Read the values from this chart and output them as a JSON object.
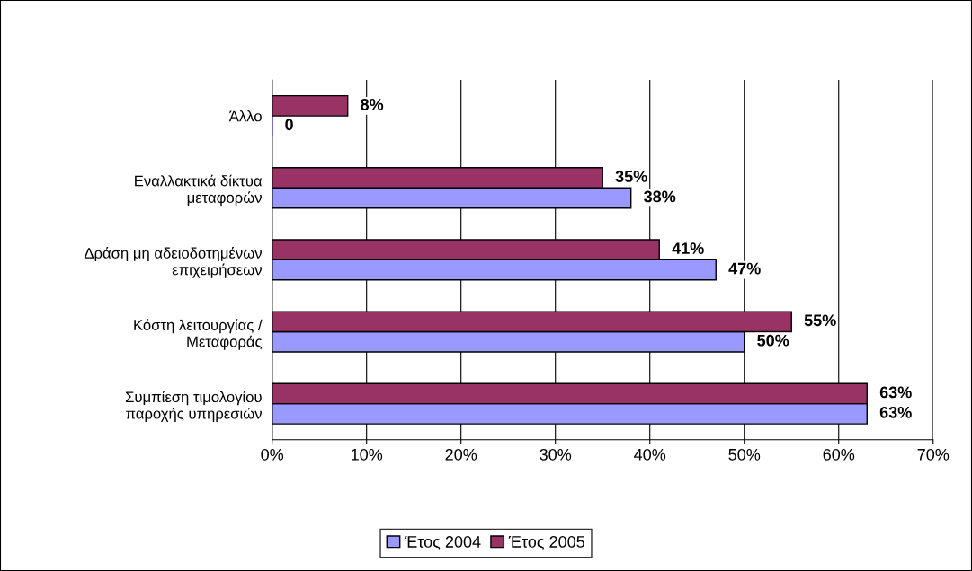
{
  "chart_data": {
    "type": "bar",
    "orientation": "horizontal",
    "categories": [
      "Άλλο",
      "Εναλλακτικά δίκτυα\nμεταφορών",
      "Δράση μη αδειοδοτημένων\nεπιχειρήσεων",
      "Κόστη λειτουργίας /\nΜεταφοράς",
      "Συμπίεση τιμολογίου\nπαροχής υπηρεσιών"
    ],
    "series": [
      {
        "name": "Έτος 2004",
        "color": "#9999ff",
        "values": [
          0,
          38,
          47,
          50,
          63
        ],
        "value_labels": [
          "0",
          "38%",
          "47%",
          "50%",
          "63%"
        ]
      },
      {
        "name": "Έτος 2005",
        "color": "#993366",
        "values": [
          8,
          35,
          41,
          55,
          63
        ],
        "value_labels": [
          "8%",
          "35%",
          "41%",
          "55%",
          "63%"
        ]
      }
    ],
    "xlim": [
      0,
      70
    ],
    "xticks": [
      {
        "value": 0,
        "label": "0%"
      },
      {
        "value": 10,
        "label": "10%"
      },
      {
        "value": 20,
        "label": "20%"
      },
      {
        "value": 30,
        "label": "30%"
      },
      {
        "value": 40,
        "label": "40%"
      },
      {
        "value": 50,
        "label": "50%"
      },
      {
        "value": 60,
        "label": "60%"
      },
      {
        "value": 70,
        "label": "70%"
      }
    ],
    "grid": "x",
    "legend": "bottom"
  }
}
